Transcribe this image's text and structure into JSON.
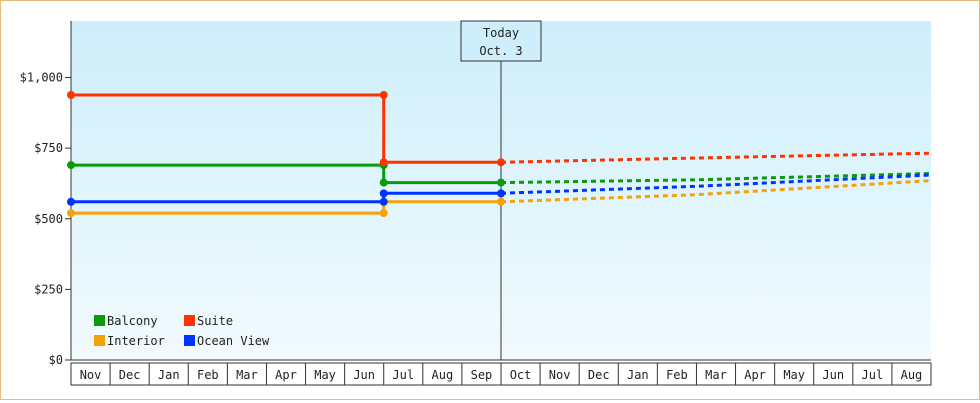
{
  "chart_data": {
    "type": "line",
    "y_ticks": [
      "$0",
      "$250",
      "$500",
      "$750",
      "$1,000"
    ],
    "y_tick_values": [
      0,
      250,
      500,
      750,
      1000
    ],
    "ylim": [
      0,
      1200
    ],
    "months": [
      "Nov",
      "Dec",
      "Jan",
      "Feb",
      "Mar",
      "Apr",
      "May",
      "Jun",
      "Jul",
      "Aug",
      "Sep",
      "Oct",
      "Nov",
      "Dec",
      "Jan",
      "Feb",
      "Mar",
      "Apr",
      "May",
      "Jun",
      "Jul",
      "Aug"
    ],
    "today_line": {
      "line1": "Today",
      "line2": "Oct. 3",
      "x": 11
    },
    "grid": false,
    "legend_position": "bottom-left",
    "series": [
      {
        "name": "Balcony",
        "color": "#0a9a0a",
        "history": [
          [
            0,
            690
          ],
          [
            8,
            690
          ],
          [
            8,
            628
          ],
          [
            11,
            628
          ]
        ],
        "markers": [
          [
            0,
            690
          ],
          [
            8,
            690
          ],
          [
            8,
            628
          ],
          [
            11,
            628
          ]
        ],
        "forecast": [
          [
            11,
            628
          ],
          [
            16,
            638
          ],
          [
            22,
            660
          ]
        ]
      },
      {
        "name": "Suite",
        "color": "#ff3300",
        "history": [
          [
            0,
            938
          ],
          [
            8,
            938
          ],
          [
            8,
            700
          ],
          [
            11,
            700
          ]
        ],
        "markers": [
          [
            0,
            938
          ],
          [
            8,
            938
          ],
          [
            8,
            700
          ],
          [
            11,
            700
          ]
        ],
        "forecast": [
          [
            11,
            700
          ],
          [
            16,
            715
          ],
          [
            22,
            732
          ]
        ]
      },
      {
        "name": "Interior",
        "color": "#f5a10a",
        "history": [
          [
            0,
            520
          ],
          [
            8,
            520
          ],
          [
            8,
            560
          ],
          [
            11,
            560
          ]
        ],
        "markers": [
          [
            0,
            520
          ],
          [
            8,
            520
          ],
          [
            8,
            560
          ],
          [
            11,
            560
          ]
        ],
        "forecast": [
          [
            11,
            560
          ],
          [
            16,
            585
          ],
          [
            22,
            635
          ]
        ]
      },
      {
        "name": "Ocean View",
        "color": "#0033ff",
        "history": [
          [
            0,
            560
          ],
          [
            8,
            560
          ],
          [
            8,
            590
          ],
          [
            11,
            590
          ]
        ],
        "markers": [
          [
            0,
            560
          ],
          [
            8,
            560
          ],
          [
            8,
            590
          ],
          [
            11,
            590
          ]
        ],
        "forecast": [
          [
            11,
            590
          ],
          [
            16,
            615
          ],
          [
            22,
            655
          ]
        ]
      }
    ]
  }
}
